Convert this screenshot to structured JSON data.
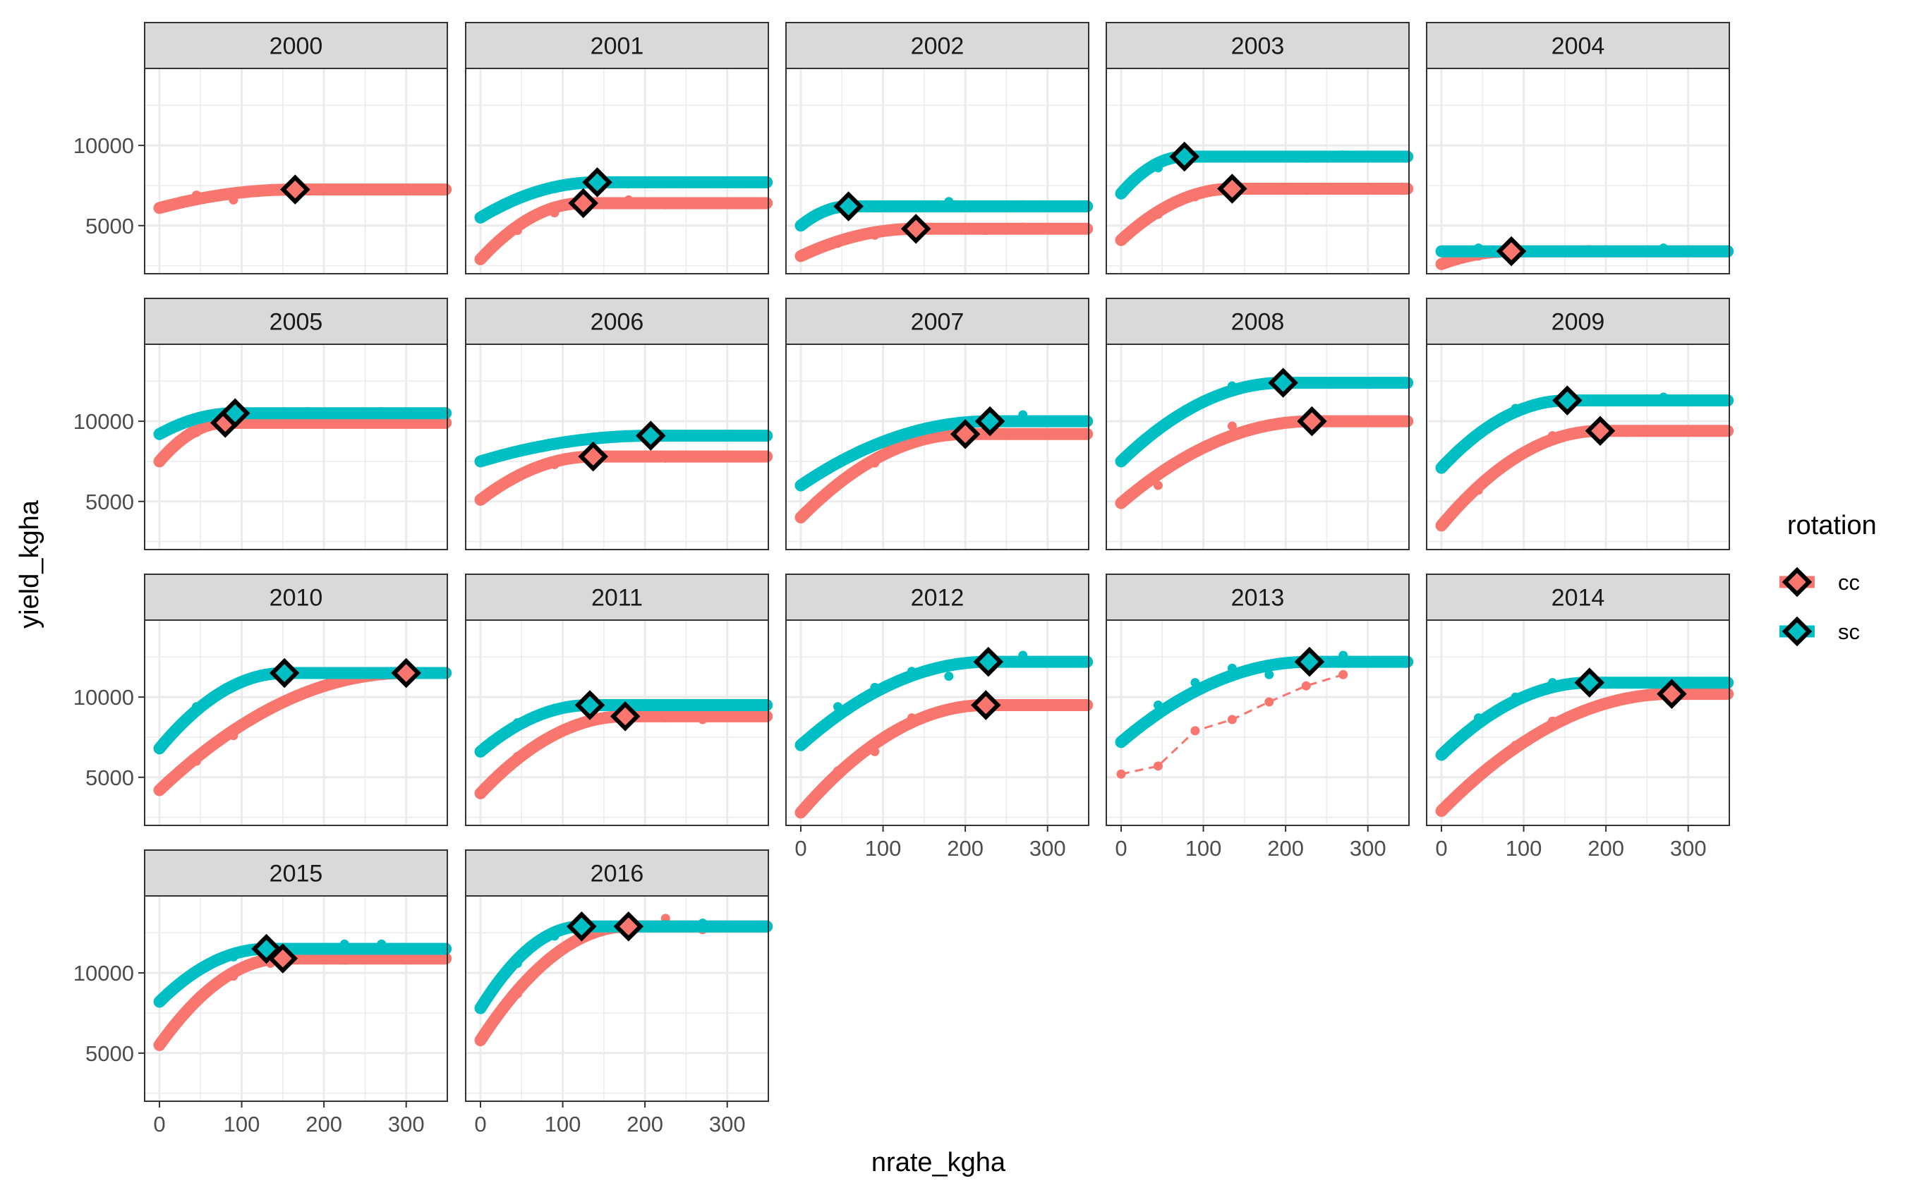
{
  "chart_data": {
    "type": "line",
    "subtype": "faceted quadratic-plateau fits with observed points and optimum markers",
    "xlabel": "nrate_kgha",
    "ylabel": "yield_kgha",
    "xlim": [
      -18,
      350
    ],
    "ylim": [
      2000,
      14800
    ],
    "xticks": [
      0,
      100,
      200,
      300
    ],
    "yticks": [
      5000,
      10000
    ],
    "xtick_labels": [
      "0",
      "100",
      "200",
      "300"
    ],
    "ytick_labels": [
      "5000",
      "10000"
    ],
    "grid": true,
    "facet_layout": {
      "cols": 5,
      "rows": 4,
      "x_axis_labels_shown_on": [
        "2012",
        "2013",
        "2014",
        "2015",
        "2016"
      ]
    },
    "legend": {
      "title": "rotation",
      "position": "right",
      "entries": [
        {
          "label": "cc",
          "color": "#F8766D"
        },
        {
          "label": "sc",
          "color": "#00BFC4"
        }
      ]
    },
    "colors": {
      "cc": "#F8766D",
      "sc": "#00BFC4",
      "strip_fill": "#D9D9D9",
      "panel_border": "#333333",
      "grid": "#EBEBEB"
    },
    "points_x": [
      0,
      45,
      90,
      135,
      180,
      225,
      270
    ],
    "panels": [
      {
        "year": "2000",
        "series": {
          "cc": {
            "fit": {
              "a": 6100,
              "plateau": 7250,
              "xopt": 165
            },
            "obs": [
              6100,
              6900,
              6600,
              7300,
              7200,
              7250,
              7300
            ],
            "opt": [
              165,
              7250
            ]
          }
        }
      },
      {
        "year": "2001",
        "series": {
          "cc": {
            "fit": {
              "a": 2900,
              "plateau": 6400,
              "xopt": 125
            },
            "obs": [
              2900,
              4700,
              5800,
              6500,
              6600,
              6300,
              6400
            ],
            "opt": [
              125,
              6400
            ]
          },
          "sc": {
            "fit": {
              "a": 5500,
              "plateau": 7700,
              "xopt": 142
            },
            "obs": [
              5500,
              6600,
              7300,
              7700,
              7600,
              7700,
              7700
            ],
            "opt": [
              142,
              7700
            ]
          }
        }
      },
      {
        "year": "2002",
        "series": {
          "cc": {
            "fit": {
              "a": 3100,
              "plateau": 4800,
              "xopt": 140
            },
            "obs": [
              3100,
              3900,
              4400,
              4800,
              4800,
              4700,
              4900
            ],
            "opt": [
              140,
              4800
            ]
          },
          "sc": {
            "fit": {
              "a": 5000,
              "plateau": 6200,
              "xopt": 58
            },
            "obs": [
              5000,
              6200,
              6100,
              6200,
              6500,
              6200,
              6300
            ],
            "opt": [
              58,
              6200
            ]
          }
        }
      },
      {
        "year": "2003",
        "series": {
          "cc": {
            "fit": {
              "a": 4100,
              "plateau": 7300,
              "xopt": 135
            },
            "obs": [
              4100,
              5700,
              6800,
              7300,
              7300,
              7200,
              7300
            ],
            "opt": [
              135,
              7300
            ]
          },
          "sc": {
            "fit": {
              "a": 7000,
              "plateau": 9300,
              "xopt": 77
            },
            "obs": [
              7000,
              8600,
              9200,
              9300,
              9300,
              9200,
              9400
            ],
            "opt": [
              77,
              9300
            ]
          }
        }
      },
      {
        "year": "2004",
        "series": {
          "cc": {
            "fit": {
              "a": 2600,
              "plateau": 3400,
              "xopt": 85
            },
            "obs": [
              2600,
              3100,
              3400,
              3400,
              3500,
              3300,
              3400
            ],
            "opt": [
              85,
              3400
            ]
          },
          "sc": {
            "fit": {
              "a": 3400,
              "plateau": 3400,
              "xopt": 0
            },
            "obs": [
              3300,
              3600,
              3500,
              3400,
              3400,
              3400,
              3600
            ],
            "opt": null,
            "dashed": true
          }
        }
      },
      {
        "year": "2005",
        "series": {
          "cc": {
            "fit": {
              "a": 7500,
              "plateau": 9900,
              "xopt": 80
            },
            "obs": [
              7500,
              9300,
              9900,
              9900,
              10000,
              10000,
              9900
            ],
            "opt": [
              80,
              9900
            ]
          },
          "sc": {
            "fit": {
              "a": 9200,
              "plateau": 10500,
              "xopt": 92
            },
            "obs": [
              9200,
              10100,
              10500,
              10400,
              10600,
              10500,
              10600
            ],
            "opt": [
              92,
              10500
            ]
          }
        }
      },
      {
        "year": "2006",
        "series": {
          "cc": {
            "fit": {
              "a": 5100,
              "plateau": 7800,
              "xopt": 137
            },
            "obs": [
              5100,
              6600,
              7300,
              7800,
              7800,
              7700,
              7800
            ],
            "opt": [
              137,
              7800
            ]
          },
          "sc": {
            "fit": {
              "a": 7500,
              "plateau": 9100,
              "xopt": 207
            },
            "obs": [
              7500,
              8200,
              8600,
              9000,
              9100,
              9100,
              9100
            ],
            "opt": [
              207,
              9100
            ]
          }
        }
      },
      {
        "year": "2007",
        "series": {
          "cc": {
            "fit": {
              "a": 4000,
              "plateau": 9200,
              "xopt": 200
            },
            "obs": [
              4000,
              6100,
              7400,
              8600,
              9200,
              9200,
              9200
            ],
            "opt": [
              200,
              9200
            ]
          },
          "sc": {
            "fit": {
              "a": 6000,
              "plateau": 10000,
              "xopt": 230
            },
            "obs": [
              6000,
              7400,
              8500,
              9300,
              9800,
              10000,
              10400
            ],
            "opt": [
              230,
              10000
            ]
          }
        }
      },
      {
        "year": "2008",
        "series": {
          "cc": {
            "fit": {
              "a": 4900,
              "plateau": 10000,
              "xopt": 232
            },
            "obs": [
              4900,
              6000,
              8000,
              9700,
              9800,
              10000,
              10000
            ],
            "opt": [
              232,
              10000
            ]
          },
          "sc": {
            "fit": {
              "a": 7500,
              "plateau": 12400,
              "xopt": 197
            },
            "obs": [
              7500,
              9600,
              11000,
              12200,
              12300,
              12400,
              12400
            ],
            "opt": [
              197,
              12400
            ]
          }
        }
      },
      {
        "year": "2009",
        "series": {
          "cc": {
            "fit": {
              "a": 3500,
              "plateau": 9400,
              "xopt": 193
            },
            "obs": [
              3500,
              5700,
              7600,
              9100,
              9400,
              9300,
              9400
            ],
            "opt": [
              193,
              9400
            ]
          },
          "sc": {
            "fit": {
              "a": 7100,
              "plateau": 11300,
              "xopt": 153
            },
            "obs": [
              7100,
              9300,
              10800,
              11200,
              11300,
              11300,
              11500
            ],
            "opt": [
              153,
              11300
            ]
          }
        }
      },
      {
        "year": "2010",
        "series": {
          "cc": {
            "fit": {
              "a": 4200,
              "plateau": 11500,
              "xopt": 300
            },
            "obs": [
              4200,
              6000,
              7600,
              9300,
              10300,
              11300,
              11500
            ],
            "opt": [
              300,
              11500
            ]
          },
          "sc": {
            "fit": {
              "a": 6800,
              "plateau": 11500,
              "xopt": 152
            },
            "obs": [
              6800,
              9400,
              10800,
              11500,
              11500,
              11400,
              11500
            ],
            "opt": [
              152,
              11500
            ]
          }
        }
      },
      {
        "year": "2011",
        "series": {
          "cc": {
            "fit": {
              "a": 4000,
              "plateau": 8800,
              "xopt": 176
            },
            "obs": [
              4000,
              6300,
              7700,
              8500,
              8800,
              8700,
              8600
            ],
            "opt": [
              176,
              8800
            ]
          },
          "sc": {
            "fit": {
              "a": 6600,
              "plateau": 9500,
              "xopt": 133
            },
            "obs": [
              6600,
              8400,
              9300,
              9500,
              9500,
              9400,
              9500
            ],
            "opt": [
              133,
              9500
            ]
          }
        }
      },
      {
        "year": "2012",
        "series": {
          "cc": {
            "fit": {
              "a": 2800,
              "plateau": 9500,
              "xopt": 225
            },
            "obs": [
              2800,
              5400,
              6600,
              8700,
              9300,
              9500,
              9500
            ],
            "opt": [
              225,
              9500
            ]
          },
          "sc": {
            "fit": {
              "a": 7000,
              "plateau": 12200,
              "xopt": 228
            },
            "obs": [
              7000,
              9400,
              10600,
              11600,
              11300,
              12400,
              12600
            ],
            "opt": [
              228,
              12200
            ]
          }
        }
      },
      {
        "year": "2013",
        "series": {
          "cc": {
            "fit": null,
            "obs": [
              5200,
              5700,
              7900,
              8600,
              9700,
              10700,
              11400
            ],
            "opt": null,
            "dashed": true
          },
          "sc": {
            "fit": {
              "a": 7200,
              "plateau": 12200,
              "xopt": 229
            },
            "obs": [
              7200,
              9500,
              10900,
              11800,
              11400,
              12300,
              12600
            ],
            "opt": [
              229,
              12200
            ]
          }
        }
      },
      {
        "year": "2014",
        "series": {
          "cc": {
            "fit": {
              "a": 2900,
              "plateau": 10200,
              "xopt": 280
            },
            "obs": [
              2900,
              5000,
              7000,
              8500,
              9200,
              9900,
              10200
            ],
            "opt": [
              280,
              10200
            ]
          },
          "sc": {
            "fit": {
              "a": 6400,
              "plateau": 10900,
              "xopt": 180
            },
            "obs": [
              6400,
              8700,
              10000,
              10900,
              10900,
              10900,
              10900
            ],
            "opt": [
              180,
              10900
            ]
          }
        }
      },
      {
        "year": "2015",
        "series": {
          "cc": {
            "fit": {
              "a": 5500,
              "plateau": 10900,
              "xopt": 150
            },
            "obs": [
              5500,
              8300,
              9800,
              10600,
              10900,
              10800,
              10900
            ],
            "opt": [
              150,
              10900
            ]
          },
          "sc": {
            "fit": {
              "a": 8200,
              "plateau": 11500,
              "xopt": 130
            },
            "obs": [
              8200,
              10100,
              11000,
              11400,
              11400,
              11800,
              11800
            ],
            "opt": [
              130,
              11500
            ]
          }
        }
      },
      {
        "year": "2016",
        "series": {
          "cc": {
            "fit": {
              "a": 5800,
              "plateau": 12900,
              "xopt": 180
            },
            "obs": [
              5800,
              8700,
              11200,
              12400,
              12800,
              13400,
              12700
            ],
            "opt": [
              180,
              12900
            ]
          },
          "sc": {
            "fit": {
              "a": 7800,
              "plateau": 12900,
              "xopt": 123
            },
            "obs": [
              7800,
              10600,
              12300,
              12900,
              12900,
              13000,
              13100
            ],
            "opt": [
              123,
              12900
            ]
          }
        }
      }
    ]
  }
}
